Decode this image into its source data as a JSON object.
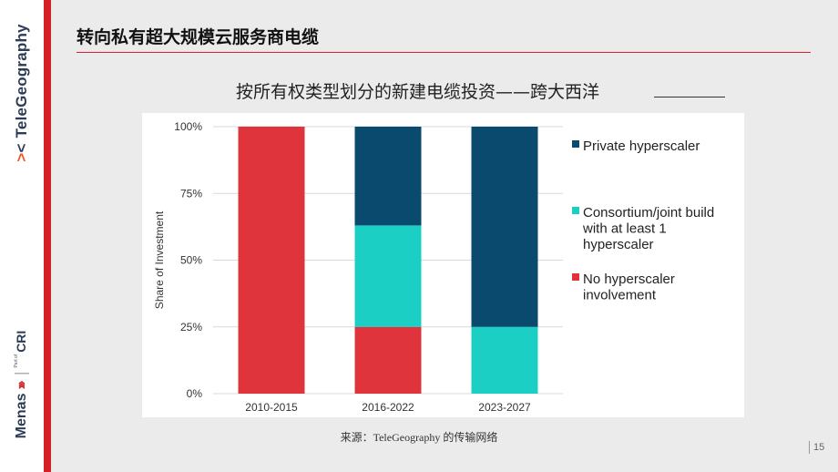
{
  "brand": {
    "name": "TeleGeography",
    "icon": "telegeography-logo-icon"
  },
  "footer_brand": {
    "menas": "Menas",
    "part_of": "Part of",
    "cri": "CRI"
  },
  "slide_title": "转向私有超大规模云服务商电缆",
  "source": "来源：TeleGeography 的传输网络",
  "page_number": "15",
  "chart_data": {
    "type": "bar",
    "stacked": true,
    "title": "按所有权类型划分的新建电缆投资——跨大西洋",
    "ylabel": "Share of Investment",
    "xlabel": "",
    "ylim": [
      0,
      100
    ],
    "yticks": [
      "0%",
      "25%",
      "50%",
      "75%",
      "100%"
    ],
    "categories": [
      "2010-2015",
      "2016-2022",
      "2023-2027"
    ],
    "series": [
      {
        "name": "No hyperscaler involvement",
        "color": "#e0343c",
        "values": [
          100,
          25,
          0
        ]
      },
      {
        "name": "Consortium/joint build with at least 1 hyperscaler",
        "color": "#1ccfc4",
        "values": [
          0,
          38,
          25
        ]
      },
      {
        "name": "Private hyperscaler",
        "color": "#0b4a6f",
        "values": [
          0,
          37,
          75
        ]
      }
    ],
    "legend_order": [
      2,
      1,
      0
    ],
    "legend_placement": "right",
    "grid": true
  }
}
